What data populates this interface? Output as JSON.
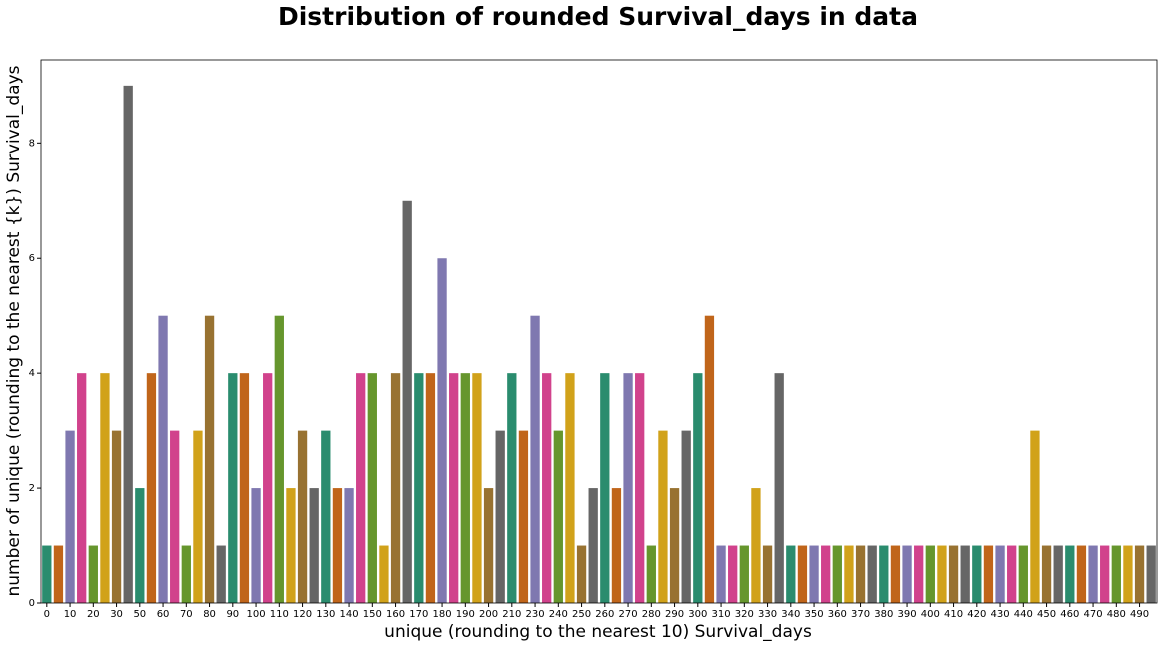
{
  "chart_data": {
    "type": "bar",
    "title": "Distribution of rounded Survival_days in data",
    "x_label": "unique (rounding to the nearest 10) Survival_days",
    "y_label": "number of unique (rounding to the nearest {k}) Survival_days",
    "categories": [
      "0",
      null,
      "10",
      null,
      "20",
      null,
      "30",
      null,
      "50",
      null,
      "60",
      null,
      "70",
      null,
      "80",
      null,
      "90",
      null,
      "100",
      null,
      "110",
      null,
      "120",
      null,
      "130",
      null,
      "140",
      null,
      "150",
      null,
      "160",
      null,
      "170",
      null,
      "180",
      null,
      "190",
      null,
      "200",
      null,
      "210",
      null,
      "230",
      null,
      "240",
      null,
      "250",
      null,
      "260",
      null,
      "270",
      null,
      "280",
      null,
      "290",
      null,
      "300",
      null,
      "310",
      null,
      "320",
      null,
      "330",
      null,
      "340",
      null,
      "350",
      null,
      "360",
      null,
      "370",
      null,
      "380",
      null,
      "390",
      null,
      "400",
      null,
      "410",
      null,
      "420",
      null,
      "430",
      null,
      "440",
      null,
      "450",
      null,
      "460",
      null,
      "470",
      null,
      "480",
      null,
      "490",
      null
    ],
    "values": [
      1,
      1,
      3,
      4,
      1,
      4,
      3,
      9,
      2,
      4,
      5,
      3,
      1,
      3,
      5,
      1,
      4,
      4,
      2,
      4,
      5,
      2,
      3,
      2,
      3,
      2,
      2,
      4,
      4,
      1,
      4,
      7,
      4,
      4,
      6,
      4,
      4,
      4,
      2,
      3,
      4,
      3,
      5,
      4,
      3,
      4,
      1,
      2,
      4,
      2,
      4,
      4,
      1,
      3,
      2,
      3,
      4,
      5,
      1,
      1,
      1,
      2,
      1,
      4,
      1,
      1,
      1,
      1,
      1,
      1,
      1,
      1,
      1,
      1,
      1,
      1,
      1,
      1,
      1,
      1,
      1,
      1,
      1,
      1,
      1,
      3,
      1,
      1,
      1,
      1,
      1,
      1,
      1,
      1,
      1,
      1
    ],
    "colors": [
      "#2a8c6e",
      "#c0651a",
      "#7f78b0",
      "#d1428c",
      "#66962d",
      "#d1a21a",
      "#987231",
      "#666666"
    ],
    "ylim": [
      0,
      9.45
    ],
    "yticks": [
      0,
      2,
      4,
      6,
      8
    ],
    "grid": false
  }
}
